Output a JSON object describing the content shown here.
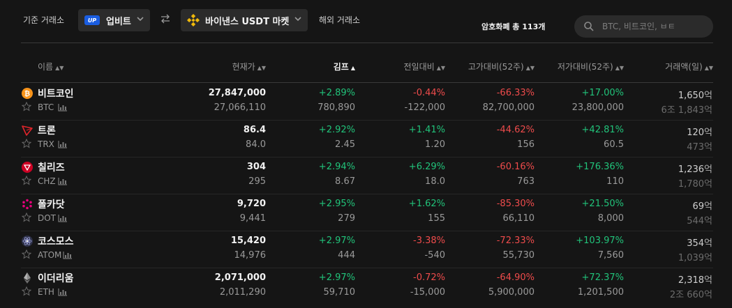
{
  "header": {
    "base_exchange_label": "기준 거래소",
    "base_exchange": "업비트",
    "upbit_logo_text": "UP",
    "quote_market": "바이낸스 USDT 마켓",
    "foreign_exchange_label": "해외 거래소",
    "total_count": "암호화폐 총 113개",
    "search_placeholder": "BTC, 비트코인, ㅂㅌ"
  },
  "columns": {
    "name": "이름",
    "price": "현재가",
    "kimp": "김프",
    "change": "전일대비",
    "from_high": "고가대비(52주)",
    "from_low": "저가대비(52주)",
    "volume": "거래액(일)"
  },
  "colors": {
    "positive": "#21c37a",
    "negative": "#ee4b4b",
    "accent_upbit": "#1a5de0",
    "accent_binance": "#f0b90b"
  },
  "rows": [
    {
      "name": "비트코인",
      "symbol": "BTC",
      "icon": "bitcoin-icon",
      "price": "27,847,000",
      "price_foreign": "27,066,110",
      "kimp": "+2.89%",
      "kimp_diff": "780,890",
      "change": "-0.44%",
      "change_abs": "-122,000",
      "high_pct": "-66.33%",
      "high_val": "82,700,000",
      "low_pct": "+17.00%",
      "low_val": "23,800,000",
      "volume": "1,650",
      "volume_unit": "억",
      "volume_foreign": "6조 1,843",
      "volume_foreign_unit": "억"
    },
    {
      "name": "트론",
      "symbol": "TRX",
      "icon": "tron-icon",
      "price": "86.4",
      "price_foreign": "84.0",
      "kimp": "+2.92%",
      "kimp_diff": "2.45",
      "change": "+1.41%",
      "change_abs": "1.20",
      "high_pct": "-44.62%",
      "high_val": "156",
      "low_pct": "+42.81%",
      "low_val": "60.5",
      "volume": "120",
      "volume_unit": "억",
      "volume_foreign": "473",
      "volume_foreign_unit": "억"
    },
    {
      "name": "칠리즈",
      "symbol": "CHZ",
      "icon": "chiliz-icon",
      "price": "304",
      "price_foreign": "295",
      "kimp": "+2.94%",
      "kimp_diff": "8.67",
      "change": "+6.29%",
      "change_abs": "18.0",
      "high_pct": "-60.16%",
      "high_val": "763",
      "low_pct": "+176.36%",
      "low_val": "110",
      "volume": "1,236",
      "volume_unit": "억",
      "volume_foreign": "1,780",
      "volume_foreign_unit": "억"
    },
    {
      "name": "폴카닷",
      "symbol": "DOT",
      "icon": "polkadot-icon",
      "price": "9,720",
      "price_foreign": "9,441",
      "kimp": "+2.95%",
      "kimp_diff": "279",
      "change": "+1.62%",
      "change_abs": "155",
      "high_pct": "-85.30%",
      "high_val": "66,110",
      "low_pct": "+21.50%",
      "low_val": "8,000",
      "volume": "69",
      "volume_unit": "억",
      "volume_foreign": "544",
      "volume_foreign_unit": "억"
    },
    {
      "name": "코스모스",
      "symbol": "ATOM",
      "icon": "cosmos-icon",
      "price": "15,420",
      "price_foreign": "14,976",
      "kimp": "+2.97%",
      "kimp_diff": "444",
      "change": "-3.38%",
      "change_abs": "-540",
      "high_pct": "-72.33%",
      "high_val": "55,730",
      "low_pct": "+103.97%",
      "low_val": "7,560",
      "volume": "354",
      "volume_unit": "억",
      "volume_foreign": "1,039",
      "volume_foreign_unit": "억"
    },
    {
      "name": "이더리움",
      "symbol": "ETH",
      "icon": "ethereum-icon",
      "price": "2,071,000",
      "price_foreign": "2,011,290",
      "kimp": "+2.97%",
      "kimp_diff": "59,710",
      "change": "-0.72%",
      "change_abs": "-15,000",
      "high_pct": "-64.90%",
      "high_val": "5,900,000",
      "low_pct": "+72.37%",
      "low_val": "1,201,500",
      "volume": "2,318",
      "volume_unit": "억",
      "volume_foreign": "2조 660",
      "volume_foreign_unit": "억"
    }
  ]
}
